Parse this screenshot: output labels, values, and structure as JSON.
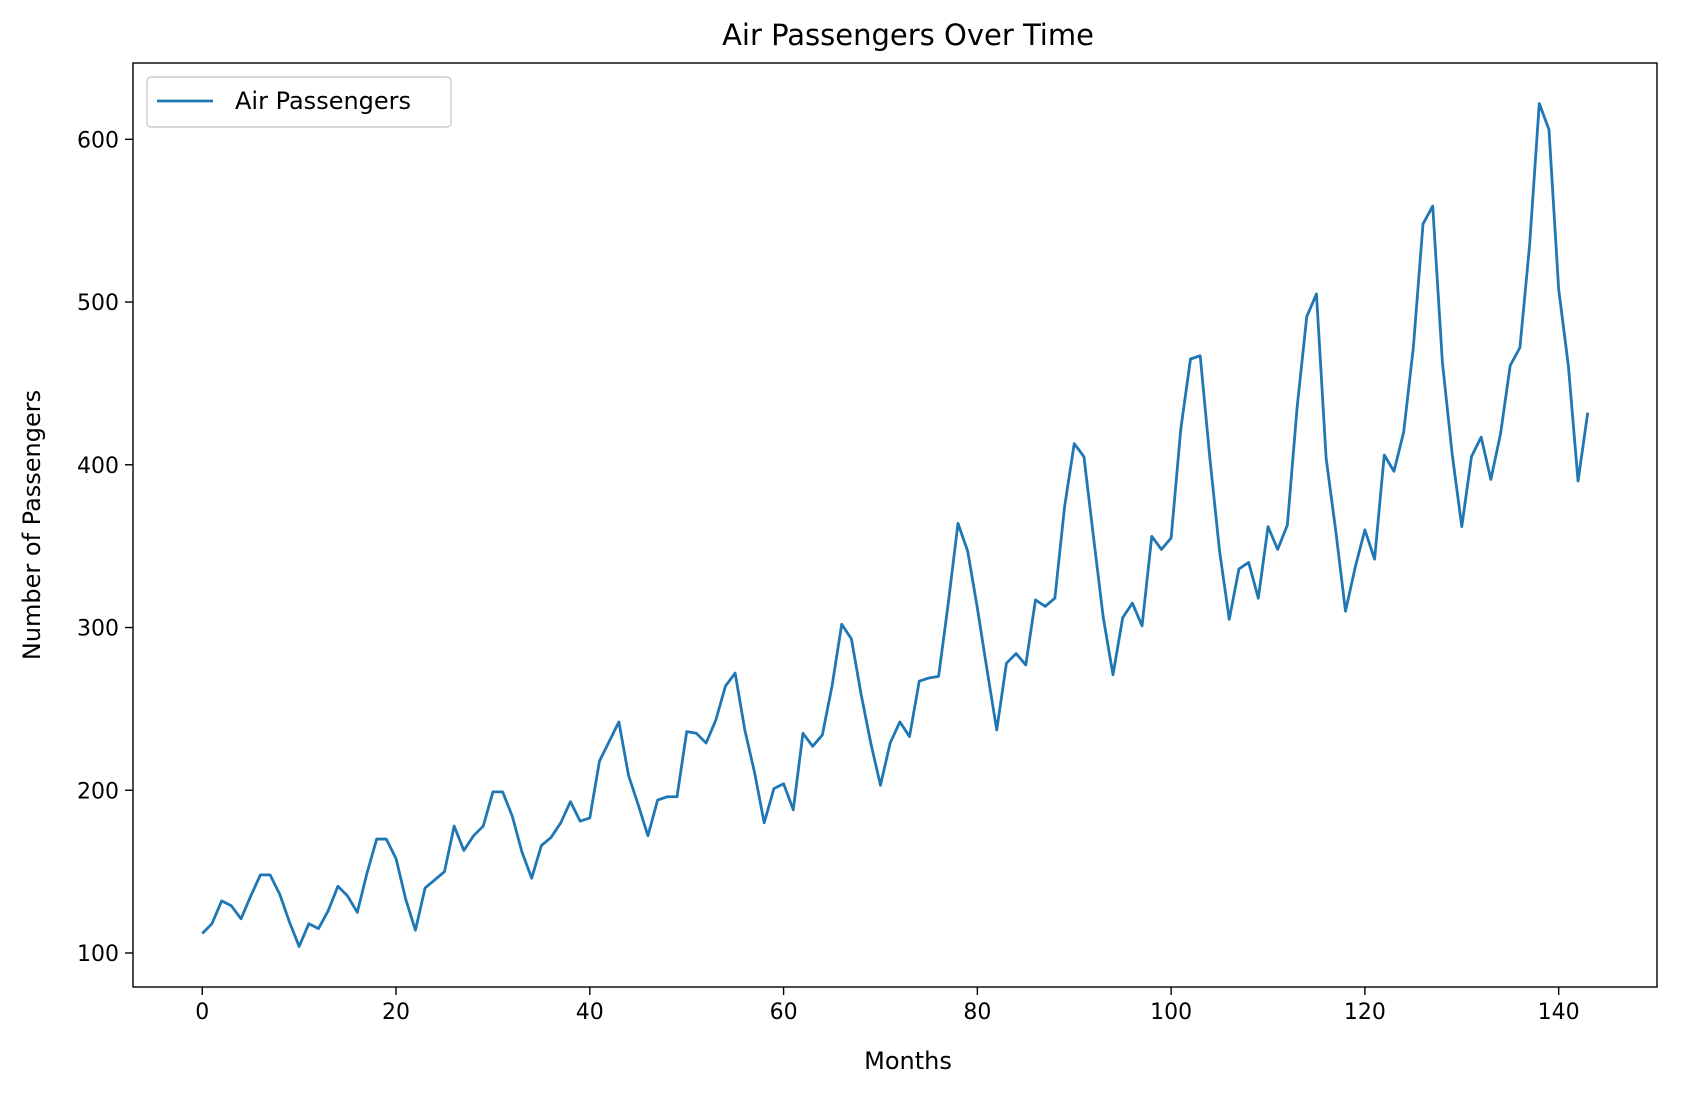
{
  "chart_data": {
    "type": "line",
    "title": "Air Passengers Over Time",
    "xlabel": "Months",
    "ylabel": "Number of Passengers",
    "xlim": [
      -7.15,
      150.15
    ],
    "ylim": [
      79.1,
      646.9
    ],
    "xticks": [
      0,
      20,
      40,
      60,
      80,
      100,
      120,
      140
    ],
    "yticks": [
      100,
      200,
      300,
      400,
      500,
      600
    ],
    "grid": false,
    "legend_position": "upper-left",
    "series": [
      {
        "name": "Air Passengers",
        "color": "#1f77b4",
        "values": [
          112,
          118,
          132,
          129,
          121,
          135,
          148,
          148,
          136,
          119,
          104,
          118,
          115,
          126,
          141,
          135,
          125,
          149,
          170,
          170,
          158,
          133,
          114,
          140,
          145,
          150,
          178,
          163,
          172,
          178,
          199,
          199,
          184,
          162,
          146,
          166,
          171,
          180,
          193,
          181,
          183,
          218,
          230,
          242,
          209,
          191,
          172,
          194,
          196,
          196,
          236,
          235,
          229,
          243,
          264,
          272,
          237,
          211,
          180,
          201,
          204,
          188,
          235,
          227,
          234,
          264,
          302,
          293,
          259,
          229,
          203,
          229,
          242,
          233,
          267,
          269,
          270,
          315,
          364,
          347,
          312,
          274,
          237,
          278,
          284,
          277,
          317,
          313,
          318,
          374,
          413,
          405,
          355,
          306,
          271,
          306,
          315,
          301,
          356,
          348,
          355,
          422,
          465,
          467,
          404,
          347,
          305,
          336,
          340,
          318,
          362,
          348,
          363,
          435,
          491,
          505,
          404,
          359,
          310,
          337,
          360,
          342,
          406,
          396,
          420,
          472,
          548,
          559,
          463,
          407,
          362,
          405,
          417,
          391,
          419,
          461,
          472,
          535,
          622,
          606,
          508,
          461,
          390,
          432
        ]
      }
    ]
  }
}
